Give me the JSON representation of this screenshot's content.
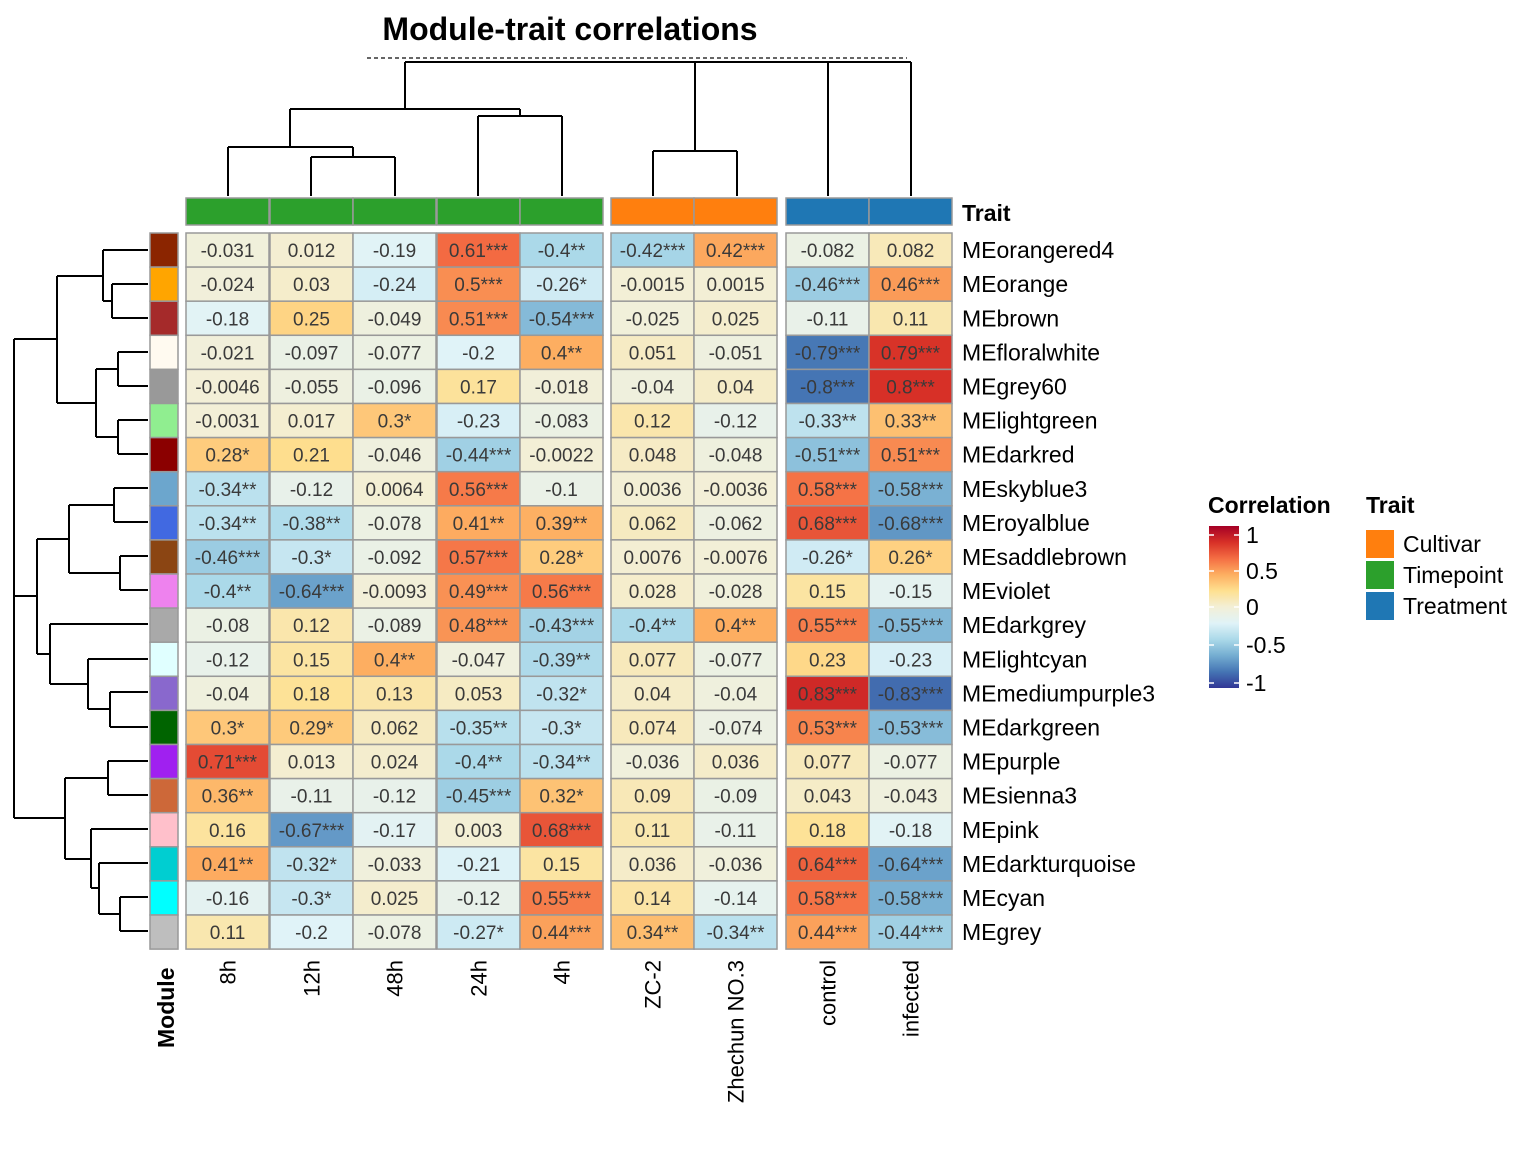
{
  "title": "Module-trait correlations",
  "chart_data": {
    "type": "heatmap",
    "title": "Module-trait correlations",
    "column_groups": [
      {
        "name": "Timepoint",
        "columns": [
          "8h",
          "12h",
          "48h",
          "24h",
          "4h"
        ]
      },
      {
        "name": "Cultivar",
        "columns": [
          "ZC-2",
          "Zhechun NO.3"
        ]
      },
      {
        "name": "Treatment",
        "columns": [
          "control",
          "infected"
        ]
      }
    ],
    "columns": [
      "8h",
      "12h",
      "48h",
      "24h",
      "4h",
      "ZC-2",
      "Zhechun NO.3",
      "control",
      "infected"
    ],
    "rows": [
      {
        "name": "MEorangered4",
        "color": "#8B2500",
        "values": [
          -0.031,
          0.012,
          -0.19,
          0.61,
          -0.4,
          -0.42,
          0.42,
          -0.082,
          0.082
        ],
        "labels": [
          "-0.031",
          "0.012",
          "-0.19",
          "0.61***",
          "-0.4**",
          "-0.42***",
          "0.42***",
          "-0.082",
          "0.082"
        ]
      },
      {
        "name": "MEorange",
        "color": "#FFA500",
        "values": [
          -0.024,
          0.03,
          -0.24,
          0.5,
          -0.26,
          -0.0015,
          0.0015,
          -0.46,
          0.46
        ],
        "labels": [
          "-0.024",
          "0.03",
          "-0.24",
          "0.5***",
          "-0.26*",
          "-0.0015",
          "0.0015",
          "-0.46***",
          "0.46***"
        ]
      },
      {
        "name": "MEbrown",
        "color": "#A52A2A",
        "values": [
          -0.18,
          0.25,
          -0.049,
          0.51,
          -0.54,
          -0.025,
          0.025,
          -0.11,
          0.11
        ],
        "labels": [
          "-0.18",
          "0.25",
          "-0.049",
          "0.51***",
          "-0.54***",
          "-0.025",
          "0.025",
          "-0.11",
          "0.11"
        ]
      },
      {
        "name": "MEfloralwhite",
        "color": "#FFFAF0",
        "values": [
          -0.021,
          -0.097,
          -0.077,
          -0.2,
          0.4,
          0.051,
          -0.051,
          -0.79,
          0.79
        ],
        "labels": [
          "-0.021",
          "-0.097",
          "-0.077",
          "-0.2",
          "0.4**",
          "0.051",
          "-0.051",
          "-0.79***",
          "0.79***"
        ]
      },
      {
        "name": "MEgrey60",
        "color": "#999999",
        "values": [
          -0.0046,
          -0.055,
          -0.096,
          0.17,
          -0.018,
          -0.04,
          0.04,
          -0.8,
          0.8
        ],
        "labels": [
          "-0.0046",
          "-0.055",
          "-0.096",
          "0.17",
          "-0.018",
          "-0.04",
          "0.04",
          "-0.8***",
          "0.8***"
        ]
      },
      {
        "name": "MElightgreen",
        "color": "#90EE90",
        "values": [
          -0.0031,
          0.017,
          0.3,
          -0.23,
          -0.083,
          0.12,
          -0.12,
          -0.33,
          0.33
        ],
        "labels": [
          "-0.0031",
          "0.017",
          "0.3*",
          "-0.23",
          "-0.083",
          "0.12",
          "-0.12",
          "-0.33**",
          "0.33**"
        ]
      },
      {
        "name": "MEdarkred",
        "color": "#8B0000",
        "values": [
          0.28,
          0.21,
          -0.046,
          -0.44,
          -0.0022,
          0.048,
          -0.048,
          -0.51,
          0.51
        ],
        "labels": [
          "0.28*",
          "0.21",
          "-0.046",
          "-0.44***",
          "-0.0022",
          "0.048",
          "-0.048",
          "-0.51***",
          "0.51***"
        ]
      },
      {
        "name": "MEskyblue3",
        "color": "#6CA6CD",
        "values": [
          -0.34,
          -0.12,
          0.0064,
          0.56,
          -0.1,
          0.0036,
          -0.0036,
          0.58,
          -0.58
        ],
        "labels": [
          "-0.34**",
          "-0.12",
          "0.0064",
          "0.56***",
          "-0.1",
          "0.0036",
          "-0.0036",
          "0.58***",
          "-0.58***"
        ]
      },
      {
        "name": "MEroyalblue",
        "color": "#4169E1",
        "values": [
          -0.34,
          -0.38,
          -0.078,
          0.41,
          0.39,
          0.062,
          -0.062,
          0.68,
          -0.68
        ],
        "labels": [
          "-0.34**",
          "-0.38**",
          "-0.078",
          "0.41**",
          "0.39**",
          "0.062",
          "-0.062",
          "0.68***",
          "-0.68***"
        ]
      },
      {
        "name": "MEsaddlebrown",
        "color": "#8B4513",
        "values": [
          -0.46,
          -0.3,
          -0.092,
          0.57,
          0.28,
          0.0076,
          -0.0076,
          -0.26,
          0.26
        ],
        "labels": [
          "-0.46***",
          "-0.3*",
          "-0.092",
          "0.57***",
          "0.28*",
          "0.0076",
          "-0.0076",
          "-0.26*",
          "0.26*"
        ]
      },
      {
        "name": "MEviolet",
        "color": "#EE82EE",
        "values": [
          -0.4,
          -0.64,
          -0.0093,
          0.49,
          0.56,
          0.028,
          -0.028,
          0.15,
          -0.15
        ],
        "labels": [
          "-0.4**",
          "-0.64***",
          "-0.0093",
          "0.49***",
          "0.56***",
          "0.028",
          "-0.028",
          "0.15",
          "-0.15"
        ]
      },
      {
        "name": "MEdarkgrey",
        "color": "#A9A9A9",
        "values": [
          -0.08,
          0.12,
          -0.089,
          0.48,
          -0.43,
          -0.4,
          0.4,
          0.55,
          -0.55
        ],
        "labels": [
          "-0.08",
          "0.12",
          "-0.089",
          "0.48***",
          "-0.43***",
          "-0.4**",
          "0.4**",
          "0.55***",
          "-0.55***"
        ]
      },
      {
        "name": "MElightcyan",
        "color": "#E0FFFF",
        "values": [
          -0.12,
          0.15,
          0.4,
          -0.047,
          -0.39,
          0.077,
          -0.077,
          0.23,
          -0.23
        ],
        "labels": [
          "-0.12",
          "0.15",
          "0.4**",
          "-0.047",
          "-0.39**",
          "0.077",
          "-0.077",
          "0.23",
          "-0.23"
        ]
      },
      {
        "name": "MEmediumpurple3",
        "color": "#8968CD",
        "values": [
          -0.04,
          0.18,
          0.13,
          0.053,
          -0.32,
          0.04,
          -0.04,
          0.83,
          -0.83
        ],
        "labels": [
          "-0.04",
          "0.18",
          "0.13",
          "0.053",
          "-0.32*",
          "0.04",
          "-0.04",
          "0.83***",
          "-0.83***"
        ]
      },
      {
        "name": "MEdarkgreen",
        "color": "#006400",
        "values": [
          0.3,
          0.29,
          0.062,
          -0.35,
          -0.3,
          0.074,
          -0.074,
          0.53,
          -0.53
        ],
        "labels": [
          "0.3*",
          "0.29*",
          "0.062",
          "-0.35**",
          "-0.3*",
          "0.074",
          "-0.074",
          "0.53***",
          "-0.53***"
        ]
      },
      {
        "name": "MEpurple",
        "color": "#A020F0",
        "values": [
          0.71,
          0.013,
          0.024,
          -0.4,
          -0.34,
          -0.036,
          0.036,
          0.077,
          -0.077
        ],
        "labels": [
          "0.71***",
          "0.013",
          "0.024",
          "-0.4**",
          "-0.34**",
          "-0.036",
          "0.036",
          "0.077",
          "-0.077"
        ]
      },
      {
        "name": "MEsienna3",
        "color": "#CD6839",
        "values": [
          0.36,
          -0.11,
          -0.12,
          -0.45,
          0.32,
          0.09,
          -0.09,
          0.043,
          -0.043
        ],
        "labels": [
          "0.36**",
          "-0.11",
          "-0.12",
          "-0.45***",
          "0.32*",
          "0.09",
          "-0.09",
          "0.043",
          "-0.043"
        ]
      },
      {
        "name": "MEpink",
        "color": "#FFC0CB",
        "values": [
          0.16,
          -0.67,
          -0.17,
          0.003,
          0.68,
          0.11,
          -0.11,
          0.18,
          -0.18
        ],
        "labels": [
          "0.16",
          "-0.67***",
          "-0.17",
          "0.003",
          "0.68***",
          "0.11",
          "-0.11",
          "0.18",
          "-0.18"
        ]
      },
      {
        "name": "MEdarkturquoise",
        "color": "#00CED1",
        "values": [
          0.41,
          -0.32,
          -0.033,
          -0.21,
          0.15,
          0.036,
          -0.036,
          0.64,
          -0.64
        ],
        "labels": [
          "0.41**",
          "-0.32*",
          "-0.033",
          "-0.21",
          "0.15",
          "0.036",
          "-0.036",
          "0.64***",
          "-0.64***"
        ]
      },
      {
        "name": "MEcyan",
        "color": "#00FFFF",
        "values": [
          -0.16,
          -0.3,
          0.025,
          -0.12,
          0.55,
          0.14,
          -0.14,
          0.58,
          -0.58
        ],
        "labels": [
          "-0.16",
          "-0.3*",
          "0.025",
          "-0.12",
          "0.55***",
          "0.14",
          "-0.14",
          "0.58***",
          "-0.58***"
        ]
      },
      {
        "name": "MEgrey",
        "color": "#BEBEBE",
        "values": [
          0.11,
          -0.2,
          -0.078,
          -0.27,
          0.44,
          0.34,
          -0.34,
          0.44,
          -0.44
        ],
        "labels": [
          "0.11",
          "-0.2",
          "-0.078",
          "-0.27*",
          "0.44***",
          "0.34**",
          "-0.34**",
          "0.44***",
          "-0.44***"
        ]
      }
    ],
    "row_annotation_label": "Module",
    "column_annotation_label": "Trait",
    "trait_colors": {
      "Cultivar": "#FF7F0E",
      "Timepoint": "#2CA02C",
      "Treatment": "#1F77B4"
    },
    "legend_correlation": {
      "title": "Correlation",
      "ticks": [
        "1",
        "0.5",
        "0",
        "-0.5",
        "-1"
      ],
      "range": [
        -1,
        1
      ],
      "colormap": "RdYlBu (reversed)"
    },
    "legend_trait": {
      "title": "Trait",
      "entries": [
        "Cultivar",
        "Timepoint",
        "Treatment"
      ]
    }
  }
}
